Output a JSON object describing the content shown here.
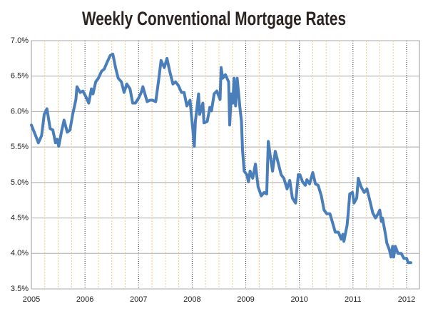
{
  "chart_data": {
    "type": "line",
    "title": "Weekly Conventional Mortgage Rates",
    "x": [
      2005,
      2005.08,
      2005.13,
      2005.19,
      2005.24,
      2005.29,
      2005.35,
      2005.4,
      2005.45,
      2005.48,
      2005.51,
      2005.56,
      2005.61,
      2005.67,
      2005.72,
      2005.77,
      2005.83,
      2005.85,
      2005.91,
      2005.96,
      2006.01,
      2006.07,
      2006.12,
      2006.15,
      2006.2,
      2006.25,
      2006.31,
      2006.36,
      2006.41,
      2006.47,
      2006.52,
      2006.57,
      2006.62,
      2006.68,
      2006.73,
      2006.78,
      2006.84,
      2006.89,
      2006.94,
      2007,
      2007.05,
      2007.08,
      2007.13,
      2007.16,
      2007.21,
      2007.26,
      2007.32,
      2007.37,
      2007.42,
      2007.48,
      2007.53,
      2007.58,
      2007.64,
      2007.69,
      2007.74,
      2007.8,
      2007.85,
      2007.9,
      2007.96,
      2008.01,
      2008.04,
      2008.06,
      2008.12,
      2008.14,
      2008.2,
      2008.22,
      2008.28,
      2008.33,
      2008.36,
      2008.41,
      2008.46,
      2008.52,
      2008.54,
      2008.57,
      2008.62,
      2008.68,
      2008.7,
      2008.73,
      2008.76,
      2008.78,
      2008.81,
      2008.84,
      2008.89,
      2008.92,
      2008.94,
      2008.97,
      2009.02,
      2009.05,
      2009.08,
      2009.13,
      2009.18,
      2009.23,
      2009.29,
      2009.34,
      2009.39,
      2009.42,
      2009.45,
      2009.5,
      2009.55,
      2009.61,
      2009.66,
      2009.71,
      2009.77,
      2009.82,
      2009.87,
      2009.93,
      2009.98,
      2010.01,
      2010.06,
      2010.11,
      2010.14,
      2010.19,
      2010.25,
      2010.3,
      2010.35,
      2010.41,
      2010.46,
      2010.51,
      2010.57,
      2010.62,
      2010.67,
      2010.73,
      2010.78,
      2010.81,
      2010.83,
      2010.89,
      2010.91,
      2010.94,
      2010.99,
      2011.02,
      2011.07,
      2011.1,
      2011.15,
      2011.21,
      2011.26,
      2011.31,
      2011.37,
      2011.42,
      2011.47,
      2011.5,
      2011.53,
      2011.55,
      2011.61,
      2011.63,
      2011.68,
      2011.71,
      2011.74,
      2011.76,
      2011.79,
      2011.84,
      2011.9,
      2011.95,
      2012,
      2012.03,
      2012.08
    ],
    "values": [
      5.81,
      5.66,
      5.56,
      5.66,
      5.96,
      6.04,
      5.76,
      5.74,
      5.56,
      5.61,
      5.51,
      5.71,
      5.88,
      5.71,
      5.74,
      5.96,
      6.17,
      6.35,
      6.27,
      6.29,
      6.22,
      6.12,
      6.32,
      6.25,
      6.42,
      6.47,
      6.57,
      6.6,
      6.69,
      6.79,
      6.81,
      6.62,
      6.47,
      6.42,
      6.27,
      6.39,
      6.32,
      6.12,
      6.12,
      6.19,
      6.27,
      6.35,
      6.22,
      6.14,
      6.16,
      6.16,
      6.14,
      6.42,
      6.72,
      6.62,
      6.75,
      6.57,
      6.39,
      6.42,
      6.37,
      6.27,
      6.27,
      6.08,
      6.16,
      5.76,
      5.51,
      5.86,
      6.25,
      5.96,
      6.12,
      5.84,
      5.86,
      6.06,
      6.01,
      6.25,
      6.29,
      6.17,
      6.62,
      6.47,
      6.52,
      6.42,
      5.81,
      6.25,
      6.12,
      6.47,
      6.08,
      6.47,
      6.06,
      5.86,
      5.46,
      5.16,
      5.11,
      5.01,
      5.16,
      5.06,
      5.26,
      4.94,
      4.81,
      4.86,
      4.84,
      5.58,
      5.41,
      5.16,
      5.44,
      5.26,
      5.11,
      5.06,
      4.91,
      5.03,
      4.78,
      4.71,
      5.11,
      5.11,
      5.01,
      4.96,
      5.04,
      4.98,
      5.14,
      4.98,
      4.96,
      4.81,
      4.61,
      4.56,
      4.56,
      4.43,
      4.3,
      4.3,
      4.2,
      4.27,
      4.17,
      4.4,
      4.56,
      4.84,
      4.86,
      4.71,
      4.78,
      5.06,
      4.94,
      4.86,
      4.91,
      4.76,
      4.57,
      4.5,
      4.56,
      4.61,
      4.45,
      4.5,
      4.25,
      4.15,
      4.05,
      3.95,
      4.1,
      3.95,
      4.1,
      4,
      4,
      3.93,
      3.93,
      3.87,
      3.87
    ],
    "color": "#4a7ebb",
    "xlim": [
      2005,
      2012.24
    ],
    "xticks": [
      2005,
      2006,
      2007,
      2008,
      2009,
      2010,
      2011,
      2012
    ],
    "ylim": [
      3.5,
      7
    ],
    "yticks": [
      {
        "value": 3.5,
        "label": "3.5%"
      },
      {
        "value": 4,
        "label": "4.0%"
      },
      {
        "value": 4.5,
        "label": "4.5%"
      },
      {
        "value": 5,
        "label": "5.0%"
      },
      {
        "value": 5.5,
        "label": "5.5%"
      },
      {
        "value": 6,
        "label": "6.0%"
      },
      {
        "value": 6.5,
        "label": "6.5%"
      },
      {
        "value": 7,
        "label": "7.0%"
      }
    ],
    "grid": true
  }
}
